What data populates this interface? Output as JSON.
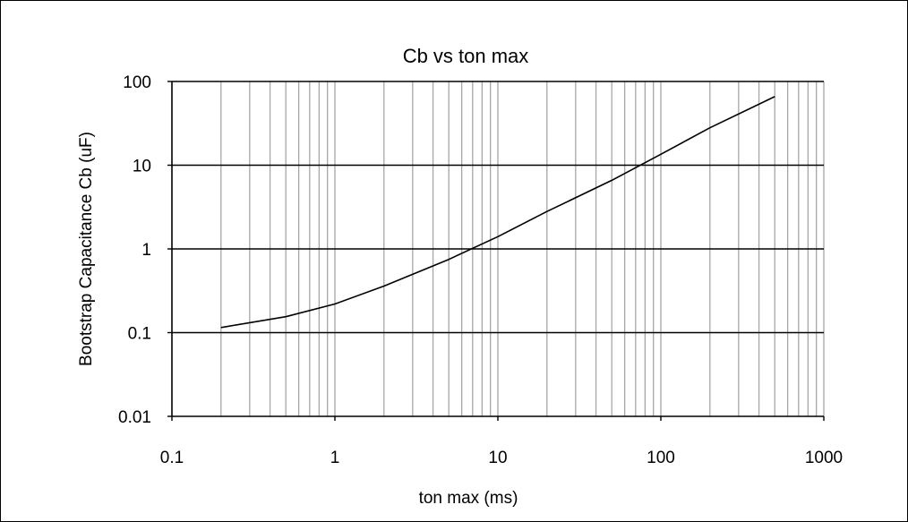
{
  "chart_data": {
    "type": "line",
    "title": "Cb vs ton max",
    "xlabel": "ton max (ms)",
    "ylabel": "Bootstrap Capacitance  Cb (uF)",
    "xscale": "log",
    "yscale": "log",
    "xlim": [
      0.1,
      1000
    ],
    "ylim": [
      0.01,
      100
    ],
    "x_tick_labels": [
      "0.1",
      "1",
      "10",
      "100",
      "1000"
    ],
    "y_tick_labels": [
      "0.01",
      "0.1",
      "1",
      "10",
      "100"
    ],
    "grid": "vertical minor and major gridlines (gray), horizontal major gridlines (black)",
    "legend": "none",
    "series": [
      {
        "color": "#000000",
        "x": [
          0.2,
          0.5,
          1,
          2,
          5,
          10,
          20,
          50,
          100,
          200,
          500
        ],
        "y": [
          0.115,
          0.155,
          0.22,
          0.36,
          0.75,
          1.4,
          2.8,
          6.6,
          13.5,
          28,
          66
        ]
      }
    ]
  }
}
